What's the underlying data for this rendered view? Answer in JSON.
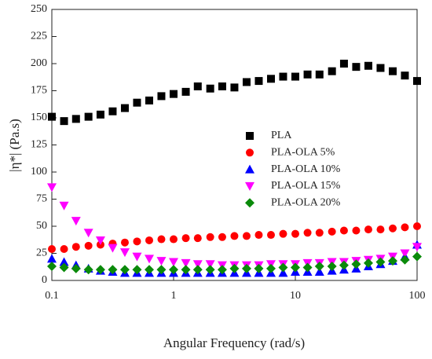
{
  "chart_data": {
    "type": "scatter",
    "xlabel": "Angular Frequency (rad/s)",
    "ylabel": "|η*| (Pa.s)",
    "xscale": "log",
    "xlim": [
      0.1,
      100
    ],
    "xticks": [
      0.1,
      1,
      10,
      100
    ],
    "ylim": [
      0,
      250
    ],
    "yticks": [
      0,
      25,
      50,
      75,
      100,
      125,
      150,
      175,
      200,
      225,
      250
    ],
    "legend": "center right",
    "x": [
      0.1,
      0.126,
      0.158,
      0.2,
      0.251,
      0.316,
      0.398,
      0.501,
      0.631,
      0.794,
      1,
      1.26,
      1.58,
      2,
      2.51,
      3.16,
      3.98,
      5.01,
      6.31,
      7.94,
      10,
      12.6,
      15.8,
      20,
      25.1,
      31.6,
      39.8,
      50.1,
      63.1,
      79.4,
      100
    ],
    "series": [
      {
        "name": "PLA",
        "color": "#000000",
        "marker": "square",
        "values": [
          151,
          147,
          149,
          151,
          153,
          156,
          159,
          164,
          166,
          170,
          172,
          174,
          179,
          177,
          179,
          178,
          183,
          184,
          186,
          188,
          188,
          190,
          190,
          193,
          200,
          197,
          198,
          196,
          193,
          189,
          184
        ]
      },
      {
        "name": "PLA-OLA 5%",
        "color": "#ff0000",
        "marker": "circle",
        "values": [
          29,
          29,
          31,
          32,
          33,
          34,
          35,
          36,
          37,
          38,
          38,
          39,
          39,
          40,
          40,
          41,
          41,
          42,
          42,
          43,
          43,
          44,
          44,
          45,
          46,
          46,
          47,
          47,
          48,
          49,
          50
        ]
      },
      {
        "name": "PLA-OLA 10%",
        "color": "#0000ff",
        "marker": "triangle-up",
        "values": [
          20,
          17,
          14,
          11,
          9,
          8,
          7,
          7,
          7,
          7,
          7,
          7,
          7,
          7,
          7,
          7,
          7,
          7,
          7,
          7,
          8,
          8,
          8,
          9,
          10,
          11,
          13,
          15,
          18,
          22,
          33
        ]
      },
      {
        "name": "PLA-OLA 15%",
        "color": "#ff00ff",
        "marker": "triangle-down",
        "values": [
          86,
          69,
          55,
          44,
          37,
          30,
          26,
          22,
          20,
          18,
          17,
          16,
          15,
          15,
          14,
          14,
          14,
          14,
          15,
          15,
          15,
          16,
          16,
          17,
          17,
          18,
          19,
          20,
          22,
          25,
          31
        ]
      },
      {
        "name": "PLA-OLA 20%",
        "color": "#0a8a0a",
        "marker": "diamond",
        "values": [
          13,
          12,
          11,
          10,
          10,
          10,
          10,
          10,
          10,
          10,
          10,
          10,
          10,
          10,
          10,
          11,
          11,
          11,
          11,
          12,
          12,
          12,
          13,
          13,
          14,
          15,
          16,
          17,
          18,
          19,
          22
        ]
      }
    ]
  }
}
